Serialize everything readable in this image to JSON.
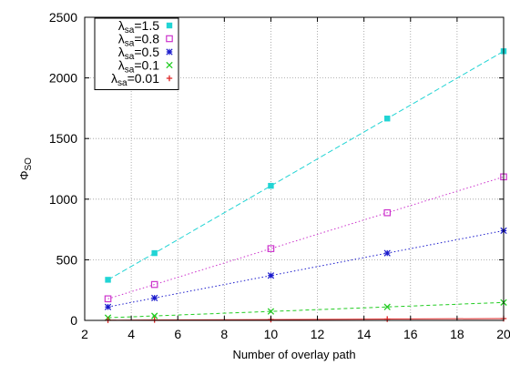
{
  "chart_data": {
    "type": "line",
    "xlabel": "Number of overlay path",
    "ylabel": "Φ",
    "ylabel_sub": "SO",
    "xlim": [
      2,
      20
    ],
    "ylim": [
      0,
      2500
    ],
    "xticks": [
      2,
      4,
      6,
      8,
      10,
      12,
      14,
      16,
      18,
      20
    ],
    "yticks": [
      0,
      500,
      1000,
      1500,
      2000,
      2500
    ],
    "grid": true,
    "legend_position": "top-left",
    "x": [
      3,
      5,
      10,
      15,
      20
    ],
    "series": [
      {
        "name": "λsa=1.5",
        "legend_base": "λ",
        "legend_sub": "sa",
        "legend_value": "=1.5",
        "color": "#21d4d4",
        "marker": "square",
        "dash": "6 3",
        "values": [
          335,
          555,
          1110,
          1665,
          2220
        ]
      },
      {
        "name": "λsa=0.8",
        "legend_base": "λ",
        "legend_sub": "sa",
        "legend_value": "=0.8",
        "color": "#cc33cc",
        "marker": "square-open",
        "dash": "1.5 2.5",
        "values": [
          178,
          296,
          592,
          888,
          1184
        ]
      },
      {
        "name": "λsa=0.5",
        "legend_base": "λ",
        "legend_sub": "sa",
        "legend_value": "=0.5",
        "color": "#1a1acc",
        "marker": "asterisk",
        "dash": "1.5 2.5",
        "values": [
          111,
          185,
          370,
          555,
          740
        ]
      },
      {
        "name": "λsa=0.1",
        "legend_base": "λ",
        "legend_sub": "sa",
        "legend_value": "=0.1",
        "color": "#22cc22",
        "marker": "x",
        "dash": "4 3",
        "values": [
          22,
          37,
          74,
          111,
          148
        ]
      },
      {
        "name": "λsa=0.01",
        "legend_base": "λ",
        "legend_sub": "sa",
        "legend_value": "=0.01",
        "color": "#dd2222",
        "marker": "plus",
        "dash": "",
        "values": [
          2,
          4,
          7,
          11,
          15
        ]
      }
    ]
  }
}
